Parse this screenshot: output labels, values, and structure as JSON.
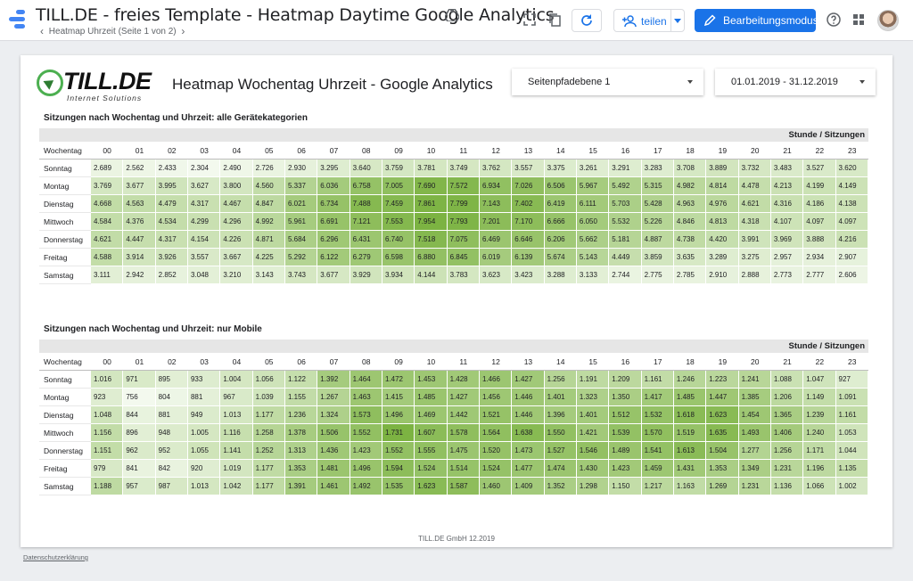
{
  "header": {
    "title": "TILL.DE - freies Template - Heatmap Daytime Google Analytics",
    "page_nav": "Heatmap Uhrzeit (Seite 1 von 2)",
    "share_label": "teilen",
    "edit_label": "Bearbeitungsmodus"
  },
  "icons": {
    "app": "data-studio-logo-icon",
    "drive": "google-drive-icon",
    "fullscreen": "fullscreen-icon",
    "copy": "copy-icon",
    "refresh": "refresh-icon",
    "share": "add-person-icon",
    "edit": "pencil-icon",
    "help": "help-icon",
    "apps": "apps-grid-icon"
  },
  "colors": {
    "accent": "#1a73e8",
    "heat_low": "#f3f9ee",
    "heat_high": "#7cb342"
  },
  "report": {
    "logo_brand": "TILL.DE",
    "logo_tagline": "Internet Solutions",
    "title": "Heatmap Wochentag Uhrzeit - Google Analytics",
    "filter_1": "Seitenpfadebene 1",
    "date_range": "01.01.2019 - 31.12.2019",
    "footer": "TILL.DE GmbH   12.2019"
  },
  "privacy_link": "Datenschutzerklärung",
  "heatmap_all": {
    "title": "Sitzungen nach Wochentag und Uhrzeit: alle Gerätekategorien",
    "band_label": "Stunde / Sitzungen",
    "row_header": "Wochentag",
    "hours": [
      "00",
      "01",
      "02",
      "03",
      "04",
      "05",
      "06",
      "07",
      "08",
      "09",
      "10",
      "11",
      "12",
      "13",
      "14",
      "15",
      "16",
      "17",
      "18",
      "19",
      "20",
      "21",
      "22",
      "23"
    ],
    "rows": [
      {
        "day": "Sonntag",
        "values": [
          "2.689",
          "2.562",
          "2.433",
          "2.304",
          "2.490",
          "2.726",
          "2.930",
          "3.295",
          "3.640",
          "3.759",
          "3.781",
          "3.749",
          "3.762",
          "3.557",
          "3.375",
          "3.261",
          "3.291",
          "3.283",
          "3.708",
          "3.889",
          "3.732",
          "3.483",
          "3.527",
          "3.620"
        ]
      },
      {
        "day": "Montag",
        "values": [
          "3.769",
          "3.677",
          "3.995",
          "3.627",
          "3.800",
          "4.560",
          "5.337",
          "6.036",
          "6.758",
          "7.005",
          "7.690",
          "7.572",
          "6.934",
          "7.026",
          "6.506",
          "5.967",
          "5.492",
          "5.315",
          "4.982",
          "4.814",
          "4.478",
          "4.213",
          "4.199",
          "4.149"
        ]
      },
      {
        "day": "Dienstag",
        "values": [
          "4.668",
          "4.563",
          "4.479",
          "4.317",
          "4.467",
          "4.847",
          "6.021",
          "6.734",
          "7.488",
          "7.459",
          "7.861",
          "7.799",
          "7.143",
          "7.402",
          "6.419",
          "6.111",
          "5.703",
          "5.428",
          "4.963",
          "4.976",
          "4.621",
          "4.316",
          "4.186",
          "4.138"
        ]
      },
      {
        "day": "Mittwoch",
        "values": [
          "4.584",
          "4.376",
          "4.534",
          "4.299",
          "4.296",
          "4.992",
          "5.961",
          "6.691",
          "7.121",
          "7.553",
          "7.954",
          "7.793",
          "7.201",
          "7.170",
          "6.666",
          "6.050",
          "5.532",
          "5.226",
          "4.846",
          "4.813",
          "4.318",
          "4.107",
          "4.097",
          "4.097"
        ]
      },
      {
        "day": "Donnerstag",
        "values": [
          "4.621",
          "4.447",
          "4.317",
          "4.154",
          "4.226",
          "4.871",
          "5.684",
          "6.296",
          "6.431",
          "6.740",
          "7.518",
          "7.075",
          "6.469",
          "6.646",
          "6.206",
          "5.662",
          "5.181",
          "4.887",
          "4.738",
          "4.420",
          "3.991",
          "3.969",
          "3.888",
          "4.216"
        ]
      },
      {
        "day": "Freitag",
        "values": [
          "4.588",
          "3.914",
          "3.926",
          "3.557",
          "3.667",
          "4.225",
          "5.292",
          "6.122",
          "6.279",
          "6.598",
          "6.880",
          "6.845",
          "6.019",
          "6.139",
          "5.674",
          "5.143",
          "4.449",
          "3.859",
          "3.635",
          "3.289",
          "3.275",
          "2.957",
          "2.934",
          "2.907"
        ]
      },
      {
        "day": "Samstag",
        "values": [
          "3.111",
          "2.942",
          "2.852",
          "3.048",
          "3.210",
          "3.143",
          "3.743",
          "3.677",
          "3.929",
          "3.934",
          "4.144",
          "3.783",
          "3.623",
          "3.423",
          "3.288",
          "3.133",
          "2.744",
          "2.775",
          "2.785",
          "2.910",
          "2.888",
          "2.773",
          "2.777",
          "2.606"
        ]
      }
    ]
  },
  "heatmap_mobile": {
    "title": "Sitzungen nach Wochentag und Uhrzeit: nur Mobile",
    "band_label": "Stunde / Sitzungen",
    "row_header": "Wochentag",
    "hours": [
      "00",
      "01",
      "02",
      "03",
      "04",
      "05",
      "06",
      "07",
      "08",
      "09",
      "10",
      "11",
      "12",
      "13",
      "14",
      "15",
      "16",
      "17",
      "18",
      "19",
      "20",
      "21",
      "22",
      "23"
    ],
    "rows": [
      {
        "day": "Sonntag",
        "values": [
          "1.016",
          "971",
          "895",
          "933",
          "1.004",
          "1.056",
          "1.122",
          "1.392",
          "1.464",
          "1.472",
          "1.453",
          "1.428",
          "1.466",
          "1.427",
          "1.256",
          "1.191",
          "1.209",
          "1.161",
          "1.246",
          "1.223",
          "1.241",
          "1.088",
          "1.047",
          "927"
        ]
      },
      {
        "day": "Montag",
        "values": [
          "923",
          "756",
          "804",
          "881",
          "967",
          "1.039",
          "1.155",
          "1.267",
          "1.463",
          "1.415",
          "1.485",
          "1.427",
          "1.456",
          "1.446",
          "1.401",
          "1.323",
          "1.350",
          "1.417",
          "1.485",
          "1.447",
          "1.385",
          "1.206",
          "1.149",
          "1.091"
        ]
      },
      {
        "day": "Dienstag",
        "values": [
          "1.048",
          "844",
          "881",
          "949",
          "1.013",
          "1.177",
          "1.236",
          "1.324",
          "1.573",
          "1.496",
          "1.469",
          "1.442",
          "1.521",
          "1.446",
          "1.396",
          "1.401",
          "1.512",
          "1.532",
          "1.618",
          "1.623",
          "1.454",
          "1.365",
          "1.239",
          "1.161"
        ]
      },
      {
        "day": "Mittwoch",
        "values": [
          "1.156",
          "896",
          "948",
          "1.005",
          "1.116",
          "1.258",
          "1.378",
          "1.506",
          "1.552",
          "1.731",
          "1.607",
          "1.578",
          "1.564",
          "1.638",
          "1.550",
          "1.421",
          "1.539",
          "1.570",
          "1.519",
          "1.635",
          "1.493",
          "1.406",
          "1.240",
          "1.053"
        ]
      },
      {
        "day": "Donnerstag",
        "values": [
          "1.151",
          "962",
          "952",
          "1.055",
          "1.141",
          "1.252",
          "1.313",
          "1.436",
          "1.423",
          "1.552",
          "1.555",
          "1.475",
          "1.520",
          "1.473",
          "1.527",
          "1.546",
          "1.489",
          "1.541",
          "1.613",
          "1.504",
          "1.277",
          "1.256",
          "1.171",
          "1.044"
        ]
      },
      {
        "day": "Freitag",
        "values": [
          "979",
          "841",
          "842",
          "920",
          "1.019",
          "1.177",
          "1.353",
          "1.481",
          "1.496",
          "1.594",
          "1.524",
          "1.514",
          "1.524",
          "1.477",
          "1.474",
          "1.430",
          "1.423",
          "1.459",
          "1.431",
          "1.353",
          "1.349",
          "1.231",
          "1.196",
          "1.135"
        ]
      },
      {
        "day": "Samstag",
        "values": [
          "1.188",
          "957",
          "987",
          "1.013",
          "1.042",
          "1.177",
          "1.391",
          "1.461",
          "1.492",
          "1.535",
          "1.623",
          "1.587",
          "1.460",
          "1.409",
          "1.352",
          "1.298",
          "1.150",
          "1.217",
          "1.163",
          "1.269",
          "1.231",
          "1.136",
          "1.066",
          "1.002"
        ]
      }
    ]
  }
}
